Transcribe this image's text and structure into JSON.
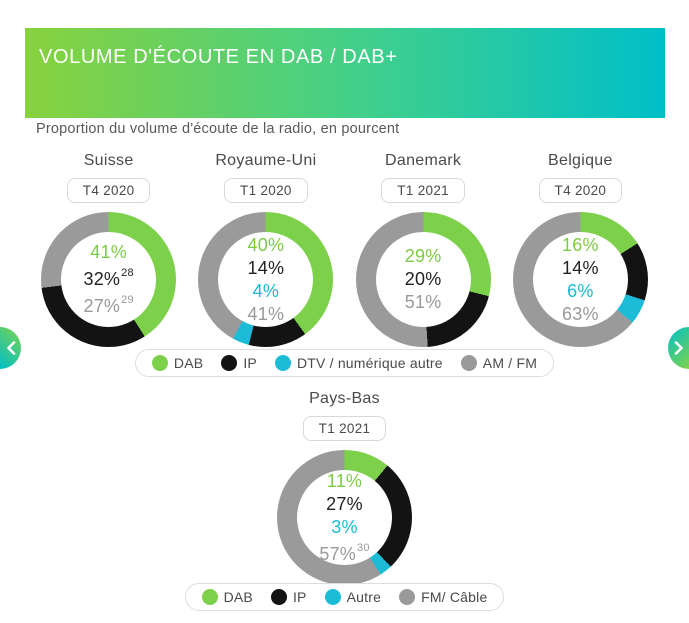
{
  "header": {
    "title": "VOLUME D'ÉCOUTE EN DAB / DAB+",
    "subtitle": "Proportion du volume d'écoute de la radio, en pourcent",
    "gradient_left": "#88D23E",
    "gradient_right": "#00BFC8"
  },
  "colors": {
    "dab": "#7DD14A",
    "ip": "#131313",
    "dtv": "#1CBBD8",
    "amfm": "#9A9A9A"
  },
  "text_colors": {
    "dab": "#7CCB45",
    "ip": "#222222",
    "dtv": "#18BAD6",
    "amfm": "#999999"
  },
  "chart_data": [
    {
      "type": "pie",
      "country": "Suisse",
      "period": "T4 2020",
      "segments": [
        {
          "label": "DAB",
          "value": 41,
          "color_key": "dab",
          "footnote": null
        },
        {
          "label": "IP",
          "value": 32,
          "color_key": "ip",
          "footnote": "28"
        },
        {
          "label": "AM / FM",
          "value": 27,
          "color_key": "amfm",
          "footnote": "29"
        }
      ]
    },
    {
      "type": "pie",
      "country": "Royaume-Uni",
      "period": "T1 2020",
      "segments": [
        {
          "label": "DAB",
          "value": 40,
          "color_key": "dab",
          "footnote": null
        },
        {
          "label": "IP",
          "value": 14,
          "color_key": "ip",
          "footnote": null
        },
        {
          "label": "DTV / numérique autre",
          "value": 4,
          "color_key": "dtv",
          "footnote": null
        },
        {
          "label": "AM / FM",
          "value": 41,
          "color_key": "amfm",
          "footnote": null
        }
      ]
    },
    {
      "type": "pie",
      "country": "Danemark",
      "period": "T1 2021",
      "segments": [
        {
          "label": "DAB",
          "value": 29,
          "color_key": "dab",
          "footnote": null
        },
        {
          "label": "IP",
          "value": 20,
          "color_key": "ip",
          "footnote": null
        },
        {
          "label": "AM / FM",
          "value": 51,
          "color_key": "amfm",
          "footnote": null
        }
      ]
    },
    {
      "type": "pie",
      "country": "Belgique",
      "period": "T4 2020",
      "segments": [
        {
          "label": "DAB",
          "value": 16,
          "color_key": "dab",
          "footnote": null
        },
        {
          "label": "IP",
          "value": 14,
          "color_key": "ip",
          "footnote": null
        },
        {
          "label": "DTV / numérique autre",
          "value": 6,
          "color_key": "dtv",
          "footnote": null
        },
        {
          "label": "AM / FM",
          "value": 63,
          "color_key": "amfm",
          "footnote": null
        }
      ]
    },
    {
      "type": "pie",
      "country": "Pays-Bas",
      "period": "T1 2021",
      "segments": [
        {
          "label": "DAB",
          "value": 11,
          "color_key": "dab",
          "footnote": null
        },
        {
          "label": "IP",
          "value": 27,
          "color_key": "ip",
          "footnote": null
        },
        {
          "label": "Autre",
          "value": 3,
          "color_key": "dtv",
          "footnote": null
        },
        {
          "label": "FM/ Câble",
          "value": 57,
          "color_key": "amfm",
          "footnote": "30"
        }
      ]
    }
  ],
  "rows": [
    {
      "chart_indices": [
        0,
        1,
        2,
        3
      ],
      "legend": [
        {
          "label": "DAB",
          "color_key": "dab"
        },
        {
          "label": "IP",
          "color_key": "ip"
        },
        {
          "label": "DTV / numérique autre",
          "color_key": "dtv"
        },
        {
          "label": "AM / FM",
          "color_key": "amfm"
        }
      ]
    },
    {
      "chart_indices": [
        4
      ],
      "legend": [
        {
          "label": "DAB",
          "color_key": "dab"
        },
        {
          "label": "IP",
          "color_key": "ip"
        },
        {
          "label": "Autre",
          "color_key": "dtv"
        },
        {
          "label": "FM/ Câble",
          "color_key": "amfm"
        }
      ]
    }
  ]
}
